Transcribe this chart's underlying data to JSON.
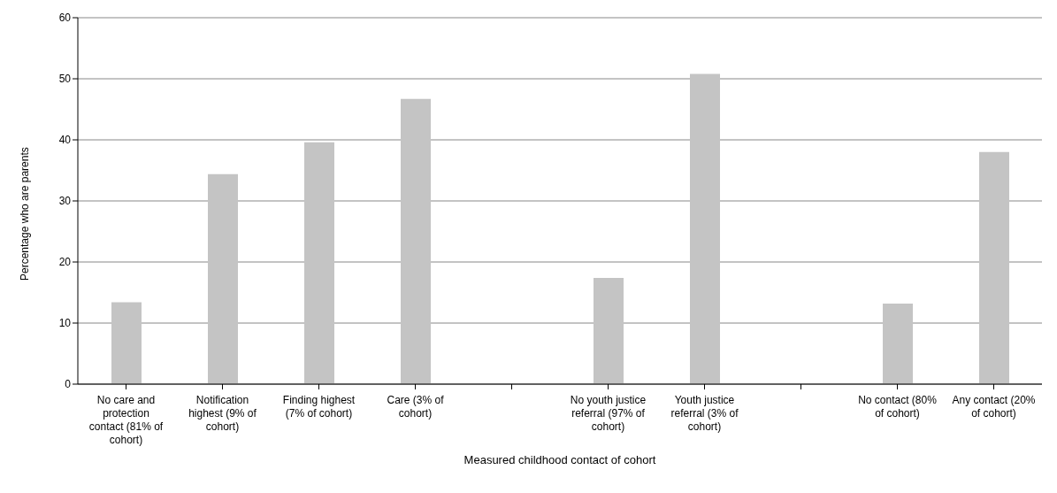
{
  "chart_data": {
    "type": "bar",
    "xlabel": "Measured childhood contact of cohort",
    "ylabel": "Percentage who are parents",
    "categories": [
      "No care and protection contact (81% of cohort)",
      "Notification highest (9% of cohort)",
      "Finding highest (7% of cohort)",
      "Care (3% of cohort)",
      null,
      "No youth justice referral (97% of cohort)",
      "Youth justice referral (3% of cohort)",
      null,
      "No contact (80% of cohort)",
      "Any contact (20% of cohort)"
    ],
    "values": [
      13.4,
      34.4,
      39.6,
      46.7,
      null,
      17.4,
      50.8,
      null,
      13.2,
      38.0
    ],
    "color": "#c4c4c4",
    "ylim": [
      0,
      60
    ],
    "yticks": [
      0,
      10,
      20,
      30,
      40,
      50,
      60
    ],
    "grid": "y"
  }
}
